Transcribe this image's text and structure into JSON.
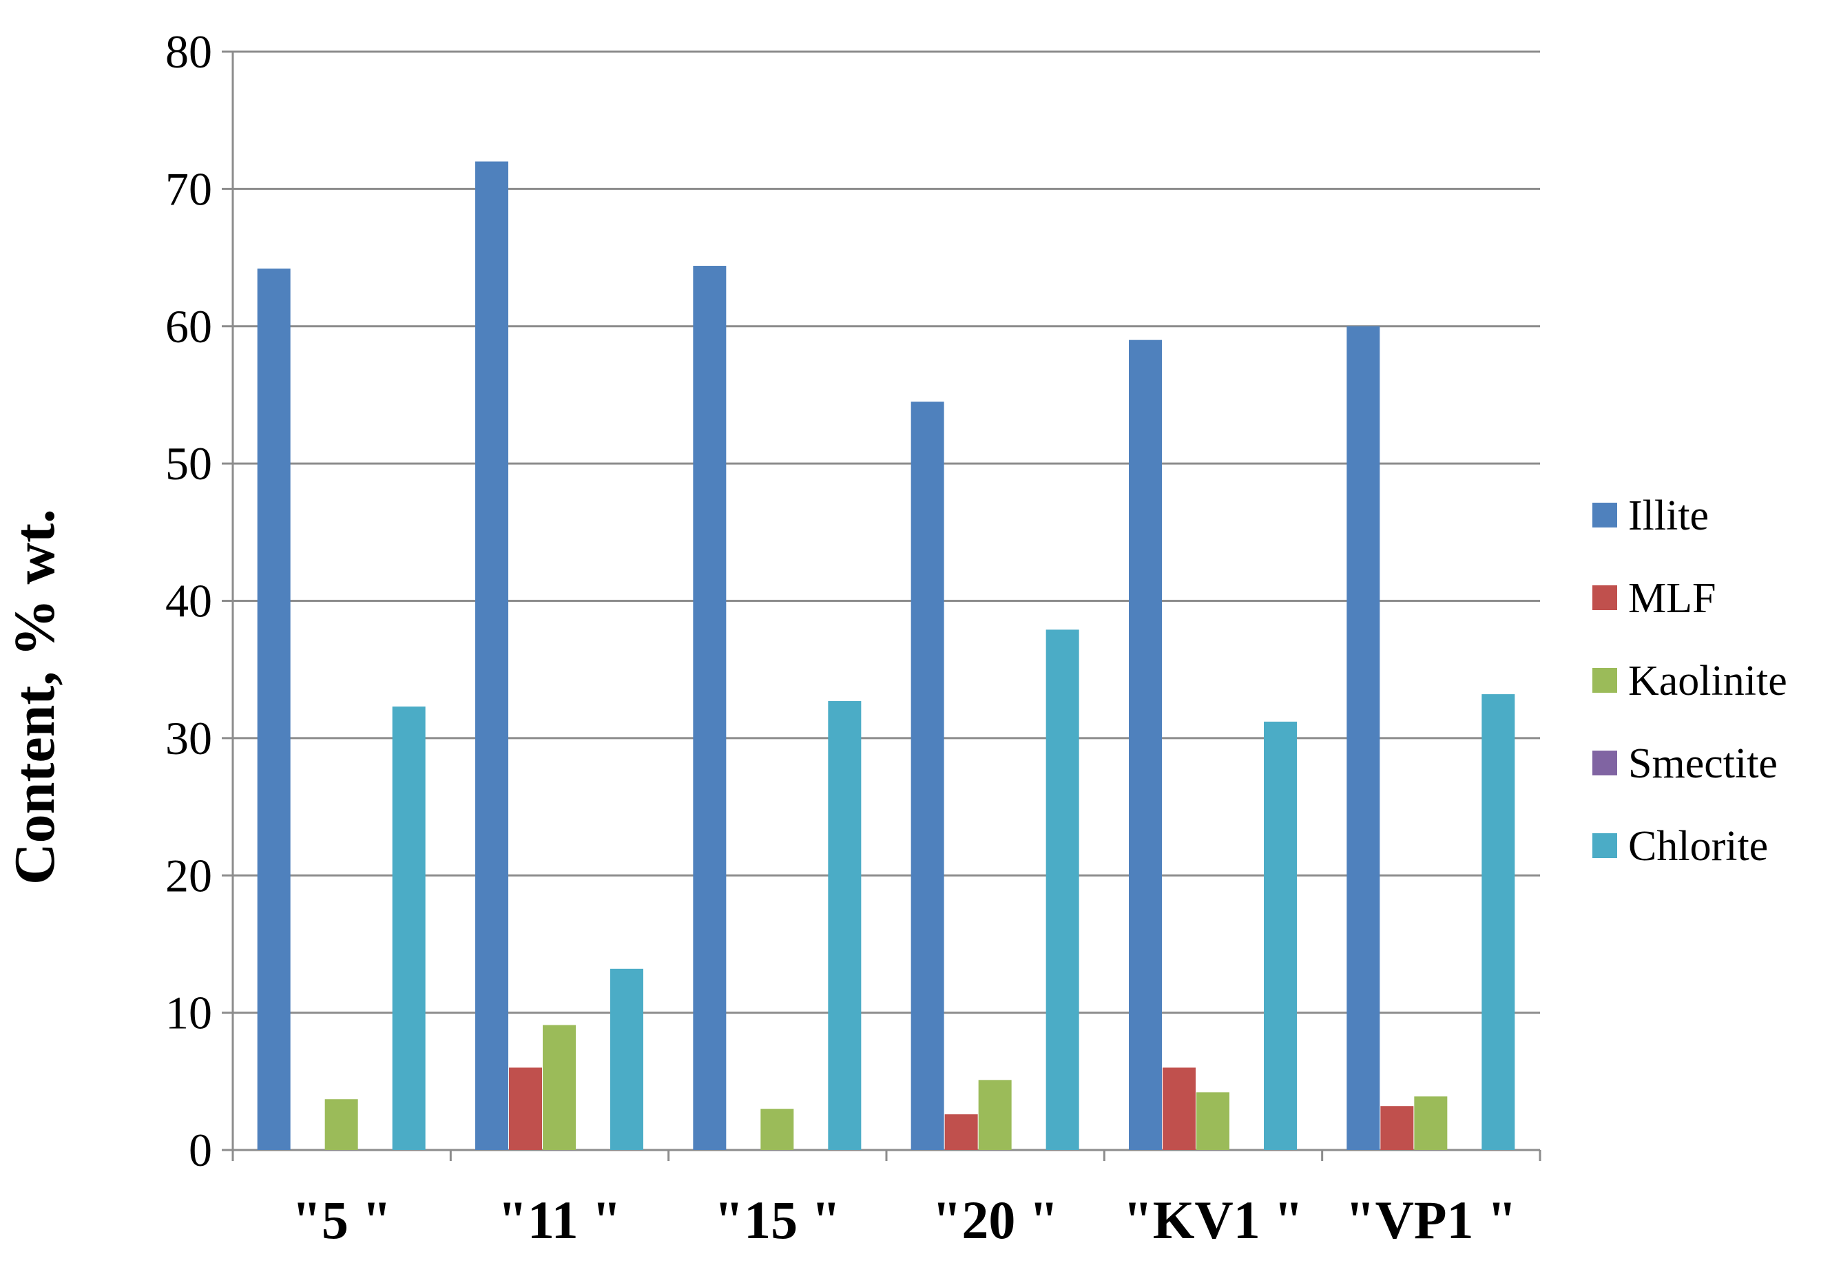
{
  "chart_data": {
    "type": "bar",
    "title": "",
    "xlabel": "",
    "ylabel": "Content, % wt.",
    "ylim": [
      0,
      80
    ],
    "yticks": [
      0,
      10,
      20,
      30,
      40,
      50,
      60,
      70,
      80
    ],
    "grid": true,
    "legend_position": "right",
    "categories": [
      "\"5 \"",
      "\"11 \"",
      "\"15  \"",
      "\"20 \"",
      "\"KV1 \"",
      "\"VP1 \""
    ],
    "series": [
      {
        "name": "Illite",
        "color": "#4F81BD",
        "values": [
          64.2,
          72.0,
          64.4,
          54.5,
          59.0,
          60.0
        ]
      },
      {
        "name": "MLF",
        "color": "#C0504D",
        "values": [
          0,
          6.0,
          0,
          2.6,
          6.0,
          3.2
        ]
      },
      {
        "name": "Kaolinite",
        "color": "#9BBB59",
        "values": [
          3.7,
          9.1,
          3.0,
          5.1,
          4.2,
          3.9
        ]
      },
      {
        "name": "Smectite",
        "color": "#8064A2",
        "values": [
          0,
          0,
          0,
          0,
          0,
          0
        ]
      },
      {
        "name": "Chlorite",
        "color": "#4BACC6",
        "values": [
          32.3,
          13.2,
          32.7,
          37.9,
          31.2,
          33.2
        ]
      }
    ]
  }
}
